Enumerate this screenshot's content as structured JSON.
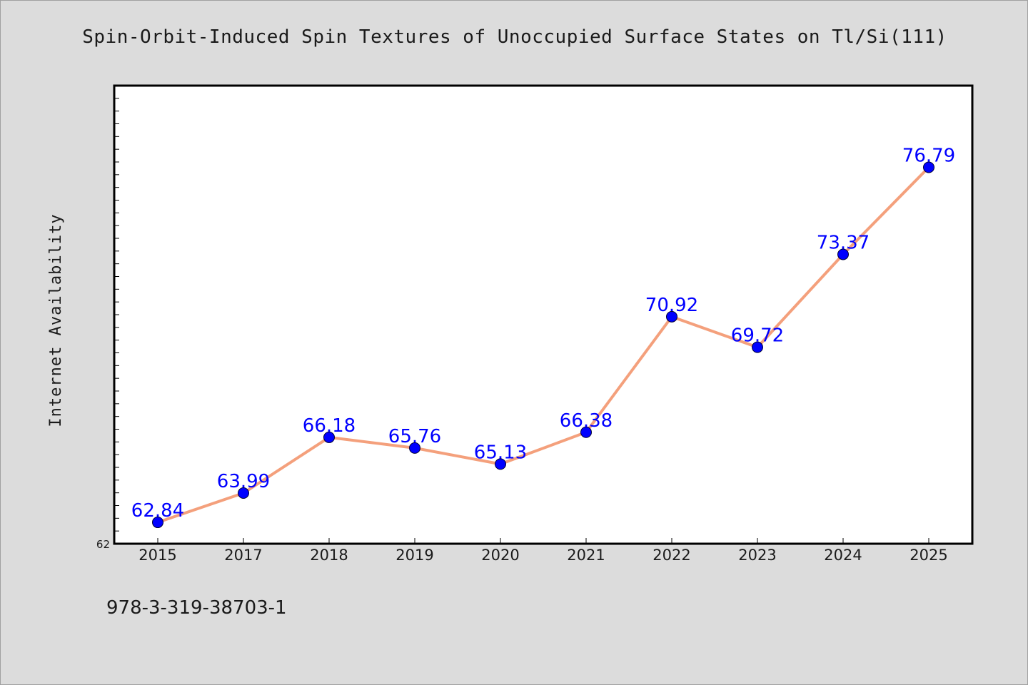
{
  "chart_data": {
    "type": "line",
    "title": "Spin-Orbit-Induced Spin Textures of Unoccupied Surface States on Tl/Si(111)",
    "xlabel": "",
    "ylabel": "Internet Availability",
    "categories": [
      "2015",
      "2017",
      "2018",
      "2019",
      "2020",
      "2021",
      "2022",
      "2023",
      "2024",
      "2025"
    ],
    "series": [
      {
        "values": [
          62.84,
          63.99,
          66.18,
          65.76,
          65.13,
          66.38,
          70.92,
          69.72,
          73.37,
          76.79
        ],
        "data_labels": [
          "62.84",
          "63.99",
          "66.18",
          "65.76",
          "65.13",
          "66.38",
          "70.92",
          "69.72",
          "73.37",
          "76.79"
        ],
        "line_color": "#f4a07c",
        "marker_color": "#0000ff",
        "label_color": "#0000ff"
      }
    ],
    "ylim": [
      62,
      80
    ],
    "ytick_labels": [
      "62"
    ],
    "grid": false,
    "legend": "none"
  },
  "footer": {
    "note": "978-3-319-38703-1"
  },
  "colors": {
    "background": "#dcdcdc",
    "plot_area": "#ffffff",
    "axis": "#000000"
  }
}
